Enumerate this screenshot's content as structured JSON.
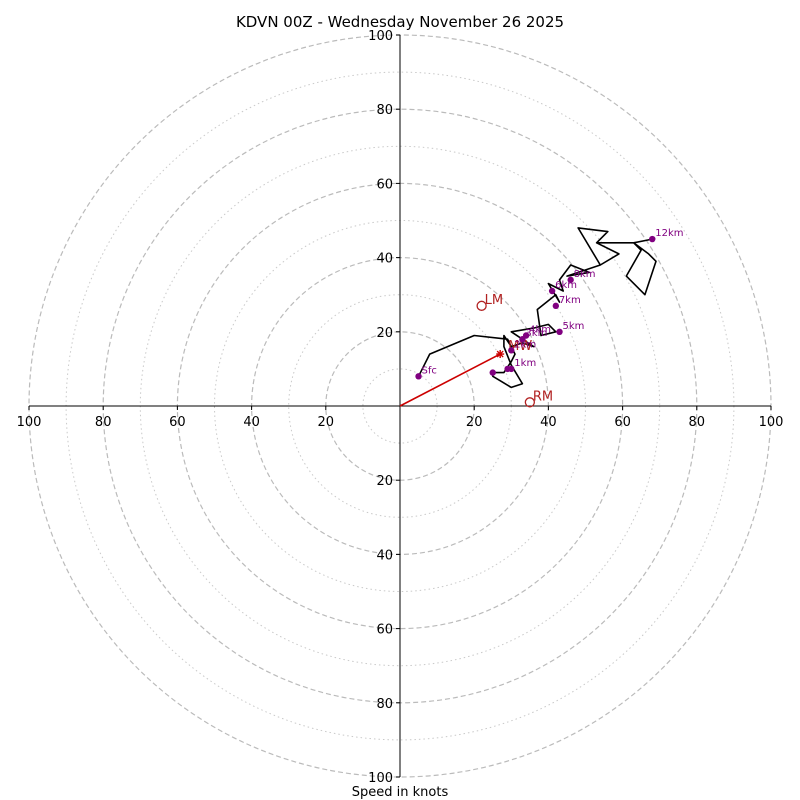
{
  "chart_data": {
    "type": "scatter",
    "subtype": "hodograph",
    "title": "KDVN 00Z - Wednesday November 26 2025",
    "xlabel": "Speed in knots",
    "ylabel": "",
    "xlim": [
      -100,
      100
    ],
    "ylim": [
      -100,
      100
    ],
    "x_tick_labels": [
      "100",
      "80",
      "60",
      "40",
      "20",
      "20",
      "40",
      "60",
      "80",
      "100"
    ],
    "x_tick_values": [
      -100,
      -80,
      -60,
      -40,
      -20,
      20,
      40,
      60,
      80,
      100
    ],
    "y_tick_labels": [
      "100",
      "80",
      "60",
      "40",
      "20",
      "20",
      "40",
      "60",
      "80",
      "100"
    ],
    "y_tick_values": [
      100,
      80,
      60,
      40,
      20,
      -20,
      -40,
      -60,
      -80,
      -100
    ],
    "rings_major": [
      20,
      40,
      60,
      80,
      100
    ],
    "rings_minor": [
      10,
      30,
      50,
      70,
      90
    ],
    "colors": {
      "trace": "#000000",
      "points": "#800080",
      "motion": "#cc0000",
      "storm_labels": "#b22222",
      "ring": "#bbbbbb",
      "axis": "#000000"
    },
    "trace": [
      [
        5,
        8
      ],
      [
        8,
        14
      ],
      [
        20,
        19
      ],
      [
        29,
        18
      ],
      [
        31,
        14
      ],
      [
        30,
        12
      ],
      [
        28,
        9
      ],
      [
        25,
        9
      ],
      [
        25,
        8
      ],
      [
        30,
        5
      ],
      [
        33,
        6
      ],
      [
        30,
        11
      ],
      [
        28,
        16
      ],
      [
        28,
        19
      ],
      [
        30,
        16
      ],
      [
        33,
        17
      ],
      [
        36,
        16
      ],
      [
        33,
        18
      ],
      [
        30,
        20
      ],
      [
        36,
        21
      ],
      [
        40,
        22
      ],
      [
        42,
        20
      ],
      [
        38,
        19
      ],
      [
        37,
        26
      ],
      [
        42,
        30
      ],
      [
        43,
        28
      ],
      [
        40,
        33
      ],
      [
        44,
        31
      ],
      [
        43,
        34
      ],
      [
        46,
        38
      ],
      [
        51,
        36
      ],
      [
        45,
        35
      ],
      [
        54,
        38
      ],
      [
        59,
        41
      ],
      [
        53,
        44
      ],
      [
        56,
        47
      ],
      [
        48,
        48
      ],
      [
        54,
        38
      ],
      [
        59,
        41
      ],
      [
        53,
        44
      ],
      [
        63,
        44
      ],
      [
        67,
        41
      ],
      [
        69,
        39
      ],
      [
        66,
        30
      ],
      [
        61,
        35
      ],
      [
        65,
        42
      ],
      [
        63,
        44
      ],
      [
        68,
        45
      ]
    ],
    "points": [
      {
        "label": "Sfc",
        "x": 5,
        "y": 8
      },
      {
        "label": "1km",
        "x": 30,
        "y": 10
      },
      {
        "label": "",
        "x": 25,
        "y": 9
      },
      {
        "label": "",
        "x": 29,
        "y": 10
      },
      {
        "label": "2km",
        "x": 30,
        "y": 15
      },
      {
        "label": "3km",
        "x": 33,
        "y": 18
      },
      {
        "label": "4km",
        "x": 34,
        "y": 19
      },
      {
        "label": "5km",
        "x": 43,
        "y": 20
      },
      {
        "label": "7km",
        "x": 42,
        "y": 27
      },
      {
        "label": "6km",
        "x": 41,
        "y": 31
      },
      {
        "label": "8km",
        "x": 46,
        "y": 34
      },
      {
        "label": "12km",
        "x": 68,
        "y": 45
      }
    ],
    "storm_motion": {
      "mean_wind": {
        "label": "MW",
        "x": 27,
        "y": 14
      },
      "left_mover": {
        "label": "LM",
        "x": 22,
        "y": 27
      },
      "right_mover": {
        "label": "RM",
        "x": 35,
        "y": 1
      }
    }
  }
}
